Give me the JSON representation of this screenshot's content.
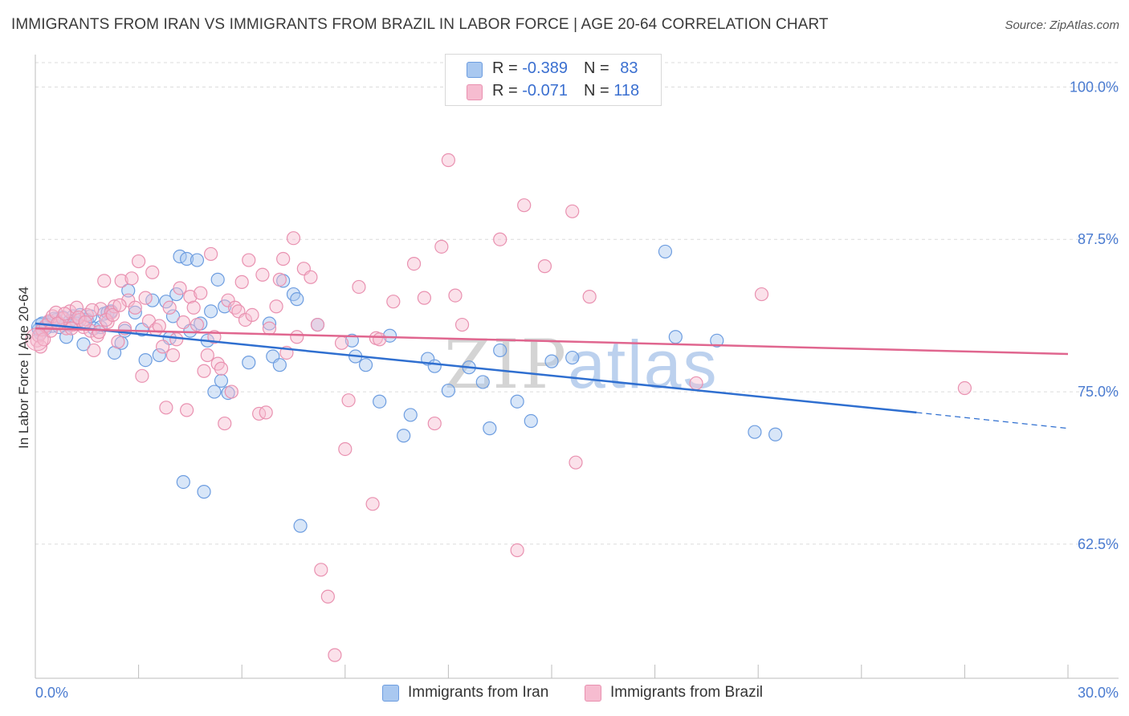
{
  "title": "IMMIGRANTS FROM IRAN VS IMMIGRANTS FROM BRAZIL IN LABOR FORCE | AGE 20-64 CORRELATION CHART",
  "source": "Source: ZipAtlas.com",
  "watermark": {
    "part1": "ZIP",
    "part2": "atlas"
  },
  "legend": {
    "iran": {
      "r_label": "R = ",
      "r_value": "-0.389",
      "n_label": "N = ",
      "n_value": "83"
    },
    "brazil": {
      "r_label": "R = ",
      "r_value": "-0.071",
      "n_label": "N = ",
      "n_value": "118"
    }
  },
  "bottom_legend": {
    "iran": "Immigrants from Iran",
    "brazil": "Immigrants from Brazil"
  },
  "colors": {
    "iran_fill": "#a9c8f0",
    "iran_stroke": "#6d9de0",
    "iran_line": "#2f6fd0",
    "brazil_fill": "#f6bcd0",
    "brazil_stroke": "#e991b0",
    "brazil_line": "#e0668f",
    "axis_text": "#4a7bd0",
    "grid": "#dcdcdc"
  },
  "chart_data": {
    "type": "scatter",
    "title": "IMMIGRANTS FROM IRAN VS IMMIGRANTS FROM BRAZIL IN LABOR FORCE | AGE 20-64 CORRELATION CHART",
    "xlabel": "",
    "ylabel": "In Labor Force | Age 20-64",
    "xlim": [
      0,
      30
    ],
    "ylim": [
      51.5,
      102
    ],
    "x_tick_labels": [
      "0.0%",
      "30.0%"
    ],
    "y_ticks": [
      62.5,
      75.0,
      87.5,
      100.0
    ],
    "y_tick_labels": [
      "62.5%",
      "75.0%",
      "87.5%",
      "100.0%"
    ],
    "legend_position": "top-center",
    "series": [
      {
        "name": "Immigrants from Iran",
        "r": -0.389,
        "n": 83,
        "trend": {
          "x0": 0,
          "y0": 80.6,
          "x1": 25.6,
          "y1": 73.3,
          "dashed_to_x": 30,
          "dashed_to_y": 72.0
        },
        "points": [
          [
            0.1,
            80.1
          ],
          [
            0.2,
            80.6
          ],
          [
            0.3,
            80.2
          ],
          [
            0.4,
            80.7
          ],
          [
            0.5,
            80.4
          ],
          [
            0.6,
            80.9
          ],
          [
            0.7,
            80.3
          ],
          [
            0.8,
            81.1
          ],
          [
            0.9,
            79.5
          ],
          [
            1.0,
            80.8
          ],
          [
            1.1,
            81.2
          ],
          [
            1.2,
            80.6
          ],
          [
            1.3,
            81.3
          ],
          [
            1.4,
            78.9
          ],
          [
            1.5,
            80.9
          ],
          [
            1.6,
            81.2
          ],
          [
            1.7,
            80.2
          ],
          [
            1.9,
            80.3
          ],
          [
            2.0,
            81.4
          ],
          [
            2.1,
            81.5
          ],
          [
            2.2,
            81.6
          ],
          [
            2.3,
            78.2
          ],
          [
            2.5,
            79.0
          ],
          [
            2.6,
            80.0
          ],
          [
            2.7,
            83.3
          ],
          [
            2.9,
            81.5
          ],
          [
            3.1,
            80.1
          ],
          [
            3.2,
            77.6
          ],
          [
            3.4,
            82.5
          ],
          [
            3.6,
            78.0
          ],
          [
            3.8,
            82.4
          ],
          [
            3.9,
            79.4
          ],
          [
            4.0,
            81.2
          ],
          [
            4.1,
            83.0
          ],
          [
            4.2,
            86.1
          ],
          [
            4.3,
            67.6
          ],
          [
            4.4,
            85.9
          ],
          [
            4.5,
            80.0
          ],
          [
            4.7,
            85.8
          ],
          [
            4.8,
            80.6
          ],
          [
            4.9,
            66.8
          ],
          [
            5.0,
            79.2
          ],
          [
            5.1,
            81.6
          ],
          [
            5.2,
            75.0
          ],
          [
            5.3,
            84.2
          ],
          [
            5.4,
            75.9
          ],
          [
            5.5,
            82.0
          ],
          [
            5.6,
            74.9
          ],
          [
            6.2,
            77.4
          ],
          [
            6.8,
            80.6
          ],
          [
            6.9,
            77.9
          ],
          [
            7.1,
            77.2
          ],
          [
            7.2,
            84.1
          ],
          [
            7.5,
            83.0
          ],
          [
            7.6,
            82.6
          ],
          [
            7.7,
            64.0
          ],
          [
            8.2,
            80.5
          ],
          [
            9.2,
            79.2
          ],
          [
            9.3,
            77.9
          ],
          [
            9.6,
            77.2
          ],
          [
            10.0,
            74.2
          ],
          [
            10.3,
            79.6
          ],
          [
            10.7,
            71.4
          ],
          [
            10.9,
            73.1
          ],
          [
            11.4,
            77.7
          ],
          [
            11.6,
            77.1
          ],
          [
            12.0,
            75.1
          ],
          [
            12.6,
            77.0
          ],
          [
            13.0,
            75.8
          ],
          [
            13.2,
            72.0
          ],
          [
            13.5,
            78.4
          ],
          [
            14.0,
            74.2
          ],
          [
            14.4,
            72.6
          ],
          [
            15.0,
            77.5
          ],
          [
            15.6,
            77.8
          ],
          [
            18.3,
            86.5
          ],
          [
            18.6,
            79.5
          ],
          [
            19.8,
            79.2
          ],
          [
            20.9,
            71.7
          ],
          [
            21.5,
            71.5
          ],
          [
            0.15,
            79.8
          ],
          [
            0.35,
            80.5
          ],
          [
            0.55,
            81.0
          ]
        ]
      },
      {
        "name": "Immigrants from Brazil",
        "r": -0.071,
        "n": 118,
        "trend": {
          "x0": 0,
          "y0": 80.2,
          "x1": 30,
          "y1": 78.1
        },
        "points": [
          [
            0.05,
            79.2
          ],
          [
            0.1,
            79.6
          ],
          [
            0.2,
            80.1
          ],
          [
            0.3,
            80.4
          ],
          [
            0.4,
            80.8
          ],
          [
            0.5,
            81.2
          ],
          [
            0.6,
            81.5
          ],
          [
            0.7,
            80.6
          ],
          [
            0.8,
            81.0
          ],
          [
            0.9,
            80.2
          ],
          [
            1.0,
            81.6
          ],
          [
            1.1,
            80.5
          ],
          [
            1.2,
            81.9
          ],
          [
            1.3,
            80.9
          ],
          [
            1.4,
            80.3
          ],
          [
            1.5,
            81.3
          ],
          [
            1.6,
            80.0
          ],
          [
            1.7,
            78.4
          ],
          [
            1.8,
            79.6
          ],
          [
            1.9,
            81.8
          ],
          [
            2.0,
            84.1
          ],
          [
            2.1,
            80.7
          ],
          [
            2.2,
            81.5
          ],
          [
            2.3,
            82.0
          ],
          [
            2.4,
            79.1
          ],
          [
            2.5,
            84.1
          ],
          [
            2.6,
            80.2
          ],
          [
            2.7,
            82.5
          ],
          [
            2.8,
            84.3
          ],
          [
            2.9,
            81.9
          ],
          [
            3.0,
            85.7
          ],
          [
            3.1,
            76.3
          ],
          [
            3.2,
            82.7
          ],
          [
            3.3,
            80.8
          ],
          [
            3.4,
            84.8
          ],
          [
            3.5,
            80.1
          ],
          [
            3.6,
            80.4
          ],
          [
            3.7,
            78.7
          ],
          [
            3.8,
            73.7
          ],
          [
            3.9,
            81.9
          ],
          [
            4.0,
            78.0
          ],
          [
            4.1,
            79.3
          ],
          [
            4.2,
            83.5
          ],
          [
            4.3,
            80.7
          ],
          [
            4.4,
            73.5
          ],
          [
            4.5,
            82.8
          ],
          [
            4.6,
            81.9
          ],
          [
            4.7,
            80.5
          ],
          [
            4.8,
            83.1
          ],
          [
            4.9,
            76.7
          ],
          [
            5.0,
            78.0
          ],
          [
            5.1,
            86.3
          ],
          [
            5.2,
            79.5
          ],
          [
            5.3,
            77.3
          ],
          [
            5.4,
            76.9
          ],
          [
            5.5,
            72.4
          ],
          [
            5.6,
            82.5
          ],
          [
            5.7,
            75.0
          ],
          [
            5.8,
            81.9
          ],
          [
            5.9,
            81.6
          ],
          [
            6.0,
            84.0
          ],
          [
            6.1,
            80.9
          ],
          [
            6.2,
            85.8
          ],
          [
            6.3,
            81.3
          ],
          [
            6.5,
            73.2
          ],
          [
            6.6,
            84.6
          ],
          [
            6.7,
            73.3
          ],
          [
            6.8,
            80.2
          ],
          [
            7.0,
            82.0
          ],
          [
            7.1,
            84.2
          ],
          [
            7.2,
            85.9
          ],
          [
            7.3,
            78.2
          ],
          [
            7.5,
            87.6
          ],
          [
            7.6,
            79.5
          ],
          [
            7.8,
            85.1
          ],
          [
            8.0,
            84.4
          ],
          [
            8.2,
            80.5
          ],
          [
            8.3,
            60.4
          ],
          [
            8.5,
            58.2
          ],
          [
            8.7,
            53.4
          ],
          [
            8.9,
            79.0
          ],
          [
            9.0,
            70.3
          ],
          [
            9.1,
            74.3
          ],
          [
            9.4,
            83.6
          ],
          [
            9.8,
            65.8
          ],
          [
            9.9,
            79.4
          ],
          [
            10.0,
            79.3
          ],
          [
            10.4,
            82.4
          ],
          [
            11.0,
            85.5
          ],
          [
            11.3,
            82.7
          ],
          [
            11.6,
            72.4
          ],
          [
            11.8,
            86.9
          ],
          [
            12.0,
            94.0
          ],
          [
            12.2,
            82.9
          ],
          [
            12.4,
            80.5
          ],
          [
            13.5,
            87.5
          ],
          [
            14.0,
            62.0
          ],
          [
            14.2,
            90.3
          ],
          [
            14.8,
            85.3
          ],
          [
            15.6,
            89.8
          ],
          [
            15.7,
            69.2
          ],
          [
            16.1,
            82.8
          ],
          [
            19.2,
            75.7
          ],
          [
            21.1,
            83.0
          ],
          [
            27.0,
            75.3
          ],
          [
            0.15,
            78.7
          ],
          [
            0.25,
            79.3
          ],
          [
            0.45,
            80.0
          ],
          [
            0.65,
            80.6
          ],
          [
            0.85,
            81.4
          ],
          [
            1.05,
            80.2
          ],
          [
            1.25,
            81.1
          ],
          [
            1.45,
            80.7
          ],
          [
            1.65,
            81.7
          ],
          [
            1.85,
            79.9
          ],
          [
            2.05,
            80.9
          ],
          [
            2.25,
            81.3
          ],
          [
            2.45,
            82.1
          ]
        ]
      }
    ]
  }
}
